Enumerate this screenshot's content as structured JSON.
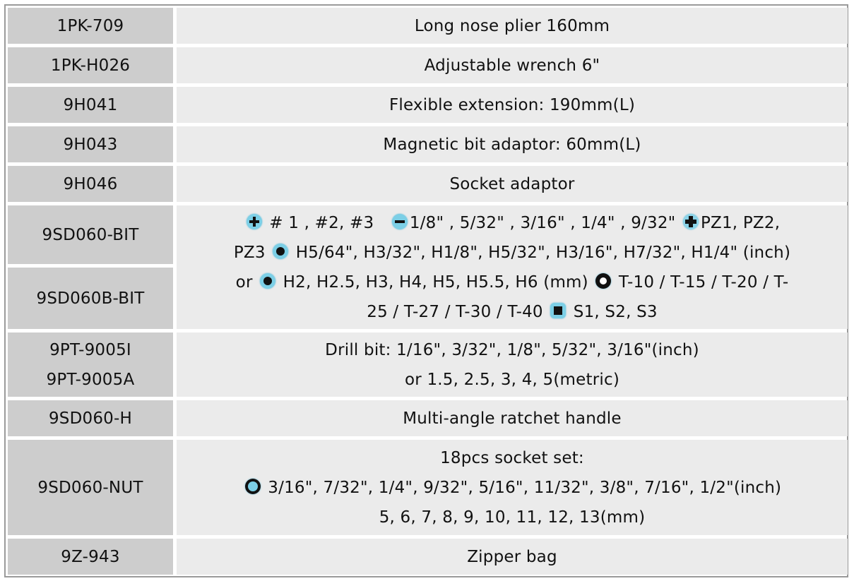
{
  "rows": [
    {
      "code": "1PK-709",
      "desc": "Long nose plier 160mm"
    },
    {
      "code": "1PK-H026",
      "desc": "Adjustable wrench 6\""
    },
    {
      "code": "9H041",
      "desc": "Flexible extension: 190mm(L)"
    },
    {
      "code": "9H043",
      "desc": "Magnetic bit adaptor: 60mm(L)"
    },
    {
      "code": "9H046",
      "desc": "Socket adaptor"
    },
    {
      "code": "9SD060-BIT"
    },
    {
      "code": "9SD060B-BIT"
    },
    {
      "code": "9PT-9005I",
      "code2": "9PT-9005A",
      "desc": "Drill bit: 1/16\", 3/32\", 1/8\", 5/32\", 3/16\"(inch)",
      "desc2": "or 1.5, 2.5, 3, 4, 5(metric)"
    },
    {
      "code": "9SD060-H",
      "desc": "Multi-angle ratchet handle"
    },
    {
      "code": "9SD060-NUT",
      "desc": "18pcs socket set:",
      "desc2": "3/16\", 7/32\", 1/4\", 9/32\", 5/16\", 11/32\", 3/8\", 7/16\", 1/2\"(inch)",
      "desc3": "5, 6, 7, 8, 9, 10, 11, 12, 13(mm)",
      "icon": "socket-icon"
    },
    {
      "code": "9Z-943",
      "desc": "Zipper bag"
    }
  ],
  "bits": {
    "l1a": "# 1 , #2, #3",
    "l1b": "1/8\" , 5/32\" , 3/16\" , 1/4\" , 9/32\"",
    "l1c": "PZ1, PZ2,",
    "l2a": "PZ3",
    "l2b": "H5/64\", H3/32\", H1/8\", H5/32\", H3/16\", H7/32\", H1/4\" (inch)",
    "l3a": "or",
    "l3b": "H2, H2.5, H3, H4, H5, H5.5, H6 (mm)",
    "l3c": "T-10 / T-15 / T-20 / T-",
    "l4a": "25 / T-27 / T-30 / T-40",
    "l4b": "S1, S2, S3",
    "icons": [
      "phillips-icon",
      "slotted-icon",
      "pozidriv-icon",
      "hex-icon",
      "torx-icon",
      "square-icon"
    ]
  },
  "colors": {
    "code_bg": "#cdcdcd",
    "desc_bg": "#ebebeb",
    "icon": "#7ccfe6"
  }
}
